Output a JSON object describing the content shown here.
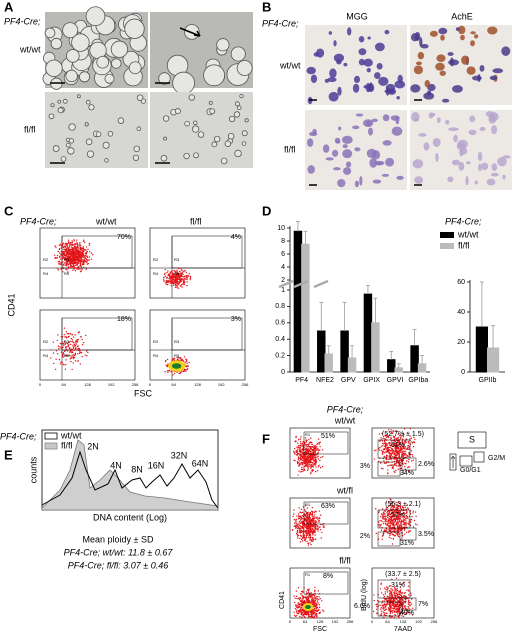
{
  "panels": {
    "a": {
      "label": "A",
      "genotype_prefix": "PF4-Cre;",
      "rows": [
        "wt/wt",
        "fl/fl"
      ]
    },
    "b": {
      "label": "B",
      "genotype_prefix": "PF4-Cre;",
      "columns": [
        "MGG",
        "AchE"
      ],
      "rows": [
        "wt/wt",
        "fl/fl"
      ]
    },
    "c": {
      "label": "C",
      "genotype_prefix": "PF4-Cre;",
      "columns": [
        "wt/wt",
        "fl/fl"
      ],
      "percentages": [
        "70%",
        "4%",
        "18%",
        "3%"
      ],
      "gates": [
        "R2",
        "R3",
        "R4",
        "R5"
      ],
      "axis_ticks": [
        "0",
        "64",
        "128",
        "192",
        "256"
      ],
      "y_label": "CD41",
      "x_label": "FSC"
    },
    "e": {
      "label": "E",
      "genotype_prefix": "PF4-Cre;",
      "legend": [
        "wt/wt",
        "fl/fl"
      ],
      "peaks": [
        "2N",
        "4N",
        "8N",
        "16N",
        "32N",
        "64N"
      ],
      "y_label": "counts",
      "x_label": "DNA content (Log)",
      "summary_title": "Mean ploidy ± SD",
      "summary": [
        "PF4-Cre; wt/wt: 11.8 ± 0.67",
        "PF4-Cre; fl/fl: 3.07 ± 0.46"
      ]
    },
    "f": {
      "label": "F",
      "genotype_prefix": "PF4-Cre;",
      "gate_label": "R1",
      "rows": [
        {
          "genotype": "wt/wt",
          "gate": "51%",
          "mean": "(52.7% ± 1.5)",
          "s": "51%",
          "g2m": "2.6%",
          "g0": "34%",
          "sub": "3%"
        },
        {
          "genotype": "wt/fl",
          "gate": "63%",
          "mean": "(56.3 ± 2.1)",
          "s": "57%",
          "g2m": "3.5%",
          "g0": "31%",
          "sub": "2%"
        },
        {
          "genotype": "fl/fl",
          "gate": "8%",
          "mean": "(33.7 ± 2.5)",
          "s": "31%",
          "g2m": "7%",
          "g0": "49%",
          "sub": "6.6%"
        }
      ],
      "phases": [
        "S",
        "G2/M",
        "G0/G1"
      ],
      "axis_ticks": [
        "0",
        "64",
        "128",
        "192",
        "256"
      ],
      "labels": {
        "cd41": "CD41",
        "fsc": "FSC",
        "brdu": "BrdU (log)",
        "aad": "7AAD"
      }
    }
  },
  "chart_data": [
    {
      "type": "bar",
      "label": "D",
      "legend_title": "PF4-Cre;",
      "categories": [
        "PF4",
        "NFE2",
        "GPV",
        "GPIX",
        "GPVI",
        "GPIba"
      ],
      "series": [
        {
          "name": "wt/wt",
          "color": "#000000",
          "values": [
            9.5,
            0.5,
            0.5,
            0.95,
            0.15,
            0.32
          ],
          "errors": [
            1.5,
            0.35,
            0.35,
            0.2,
            0.1,
            0.2
          ]
        },
        {
          "name": "fl/fl",
          "color": "#bbbbbb",
          "values": [
            7.5,
            0.22,
            0.17,
            0.6,
            0.05,
            0.1
          ],
          "errors": [
            2,
            0.1,
            0.15,
            0.3,
            0.05,
            0.1
          ]
        }
      ],
      "ylim": [
        0,
        10
      ],
      "axis_break": [
        1,
        2
      ],
      "yticks": [
        0,
        0.2,
        0.4,
        0.6,
        0.8,
        1,
        2,
        4,
        6,
        8,
        10
      ]
    },
    {
      "type": "bar",
      "categories": [
        "GPIIb"
      ],
      "series": [
        {
          "name": "wt/wt",
          "color": "#000000",
          "values": [
            30
          ],
          "errors": [
            30
          ]
        },
        {
          "name": "fl/fl",
          "color": "#bbbbbb",
          "values": [
            16
          ],
          "errors": [
            15
          ]
        }
      ],
      "ylim": [
        0,
        60
      ],
      "yticks": [
        0,
        20,
        40,
        60
      ]
    }
  ]
}
